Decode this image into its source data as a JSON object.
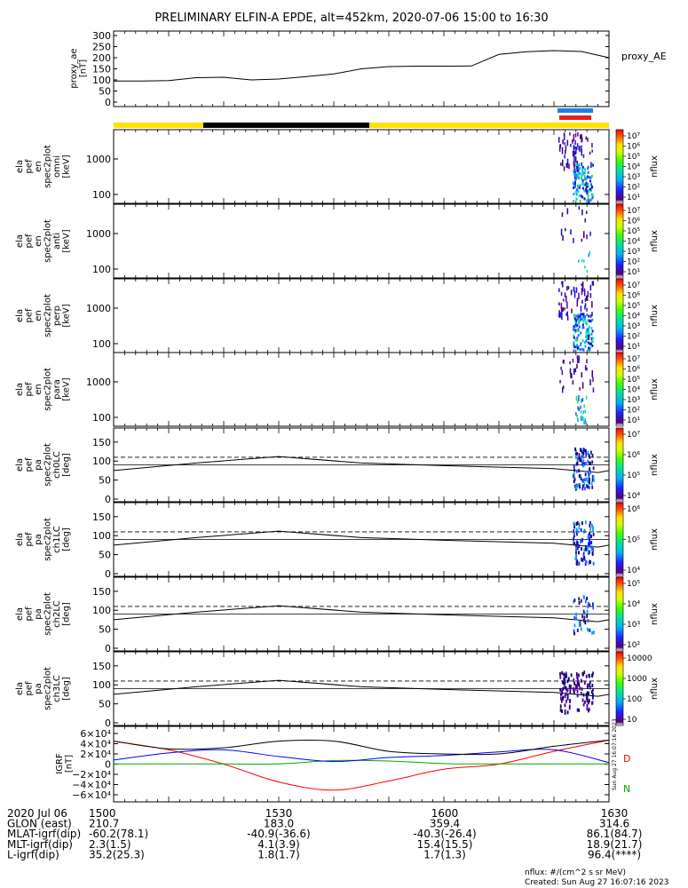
{
  "title": "PRELIMINARY ELFIN-A EPDE, alt=452km, 2020-07-06 15:00 to 16:30",
  "chart_data": {
    "type": "line",
    "time_range": [
      "2020-07-06 15:00",
      "2020-07-06 16:30"
    ],
    "x_ticks": [
      "1500",
      "1530",
      "1600",
      "1630"
    ],
    "proxy_ae": {
      "ylabel": [
        "proxy_ae",
        "[nT]"
      ],
      "legend": "proxy_AE",
      "yticks": [
        "0",
        "50",
        "100",
        "150",
        "200",
        "250",
        "300"
      ],
      "ylim": [
        0,
        300
      ],
      "t_min": [
        0,
        5,
        10,
        15,
        20,
        25,
        30,
        35,
        40,
        45,
        50,
        55,
        60,
        65,
        70,
        75,
        80,
        85,
        90
      ],
      "values": [
        95,
        95,
        97,
        110,
        112,
        100,
        104,
        115,
        127,
        150,
        160,
        162,
        162,
        163,
        215,
        227,
        232,
        228,
        200
      ]
    },
    "spectrograms": [
      {
        "ylabel": [
          "ela",
          "pef",
          "en",
          "spec2plot",
          "omni",
          "[keV]"
        ],
        "yticks": [
          "1000",
          "100"
        ],
        "cbar_ticks": [
          "10⁷",
          "10⁶",
          "10⁵",
          "10⁴",
          "10³",
          "10²",
          "10¹"
        ],
        "cbar_label": "nflux"
      },
      {
        "ylabel": [
          "ela",
          "pef",
          "en",
          "spec2plot",
          "anti",
          "[keV]"
        ],
        "yticks": [
          "1000",
          "100"
        ],
        "cbar_ticks": [
          "10⁷",
          "10⁶",
          "10⁵",
          "10⁴",
          "10³",
          "10²",
          "10¹"
        ],
        "cbar_label": "nflux"
      },
      {
        "ylabel": [
          "ela",
          "pef",
          "en",
          "spec2plot",
          "perp",
          "[keV]"
        ],
        "yticks": [
          "1000",
          "100"
        ],
        "cbar_ticks": [
          "10⁷",
          "10⁶",
          "10⁵",
          "10⁴",
          "10³",
          "10²",
          "10¹"
        ],
        "cbar_label": "nflux"
      },
      {
        "ylabel": [
          "ela",
          "pef",
          "en",
          "spec2plot",
          "para",
          "[keV]"
        ],
        "yticks": [
          "1000",
          "100"
        ],
        "cbar_ticks": [
          "10⁷",
          "10⁶",
          "10⁵",
          "10⁴",
          "10³",
          "10²",
          "10¹"
        ],
        "cbar_label": "nflux"
      }
    ],
    "pitch_angle": [
      {
        "ylabel": [
          "ela",
          "pef",
          "pa",
          "spec2plot",
          "ch0LC",
          "[deg]"
        ],
        "yticks": [
          "0",
          "50",
          "100",
          "150"
        ],
        "cbar_ticks": [
          "10⁷",
          "10⁶",
          "10⁵",
          "10⁴"
        ],
        "cbar_label": "nflux"
      },
      {
        "ylabel": [
          "ela",
          "pef",
          "pa",
          "spec2plot",
          "ch1LC",
          "[deg]"
        ],
        "yticks": [
          "0",
          "50",
          "100",
          "150"
        ],
        "cbar_ticks": [
          "10⁶",
          "10⁵",
          "10⁴"
        ],
        "cbar_label": "nflux"
      },
      {
        "ylabel": [
          "ela",
          "pef",
          "pa",
          "spec2plot",
          "ch2LC",
          "[deg]"
        ],
        "yticks": [
          "0",
          "50",
          "100",
          "150"
        ],
        "cbar_ticks": [
          "10⁵",
          "10⁴",
          "10³",
          "10²"
        ],
        "cbar_label": "nflux"
      },
      {
        "ylabel": [
          "ela",
          "pef",
          "pa",
          "spec2plot",
          "ch3LC",
          "[deg]"
        ],
        "yticks": [
          "0",
          "50",
          "100",
          "150"
        ],
        "cbar_ticks": [
          "10000",
          "1000",
          "100",
          "10"
        ],
        "cbar_label": "nflux"
      }
    ],
    "igrf": {
      "ylabel": [
        "IGRF",
        "[nT]"
      ],
      "yticks": [
        "6×10⁴",
        "4×10⁴",
        "2×10⁴",
        "0",
        "−2×10⁴",
        "−4×10⁴",
        "−6×10⁴"
      ],
      "ylim": [
        -60000,
        60000
      ],
      "legend": [
        "D",
        "N"
      ],
      "t_min": [
        0,
        10,
        20,
        30,
        40,
        50,
        60,
        70,
        80,
        90
      ],
      "series": [
        {
          "name": "D",
          "color": "#ff0000",
          "values": [
            45000,
            28000,
            0,
            -35000,
            -51000,
            -33000,
            -10000,
            0,
            25000,
            47000
          ]
        },
        {
          "name": "N",
          "color": "#00aa00",
          "values": [
            500,
            500,
            500,
            500,
            7000,
            6000,
            1000,
            500,
            500,
            500
          ]
        },
        {
          "name": "",
          "color": "#0000ff",
          "values": [
            8000,
            22000,
            28000,
            15000,
            5000,
            13000,
            17000,
            24000,
            28000,
            3000
          ]
        },
        {
          "name": "",
          "color": "#000000",
          "values": [
            45000,
            30000,
            32000,
            45000,
            45000,
            25000,
            20000,
            20000,
            35000,
            47000
          ]
        }
      ]
    }
  },
  "orbit_table": {
    "rows": [
      {
        "label": "2020 Jul 06",
        "values": [
          "1500",
          "1530",
          "1600",
          "1630"
        ]
      },
      {
        "label": "GLON (east)",
        "values": [
          "210.7",
          "183.0",
          "359.4",
          "314.6"
        ]
      },
      {
        "label": "MLAT-igrf(dip)",
        "values": [
          "-60.2(78.1)",
          "-40.9(-36.6)",
          "-40.3(-26.4)",
          "86.1(84.7)"
        ]
      },
      {
        "label": "MLT-igrf(dip)",
        "values": [
          "2.3(1.5)",
          "4.1(3.9)",
          "15.4(15.5)",
          "18.9(21.7)"
        ]
      },
      {
        "label": "L-igrf(dip)",
        "values": [
          "35.2(25.3)",
          "1.8(1.7)",
          "1.7(1.3)",
          "96.4(****)"
        ]
      }
    ]
  },
  "footer": {
    "units": "nflux: #/(cm^2 s sr MeV)",
    "created": "Created: Sun Aug 27 16:07:16 2023",
    "side_stamp": "Sun Aug 27 16:07:16 2023"
  },
  "colors": {
    "status_yellow": "#ffe000",
    "status_black": "#000000",
    "marker_blue": "#1e7fe6",
    "marker_red": "#e61e1e"
  }
}
